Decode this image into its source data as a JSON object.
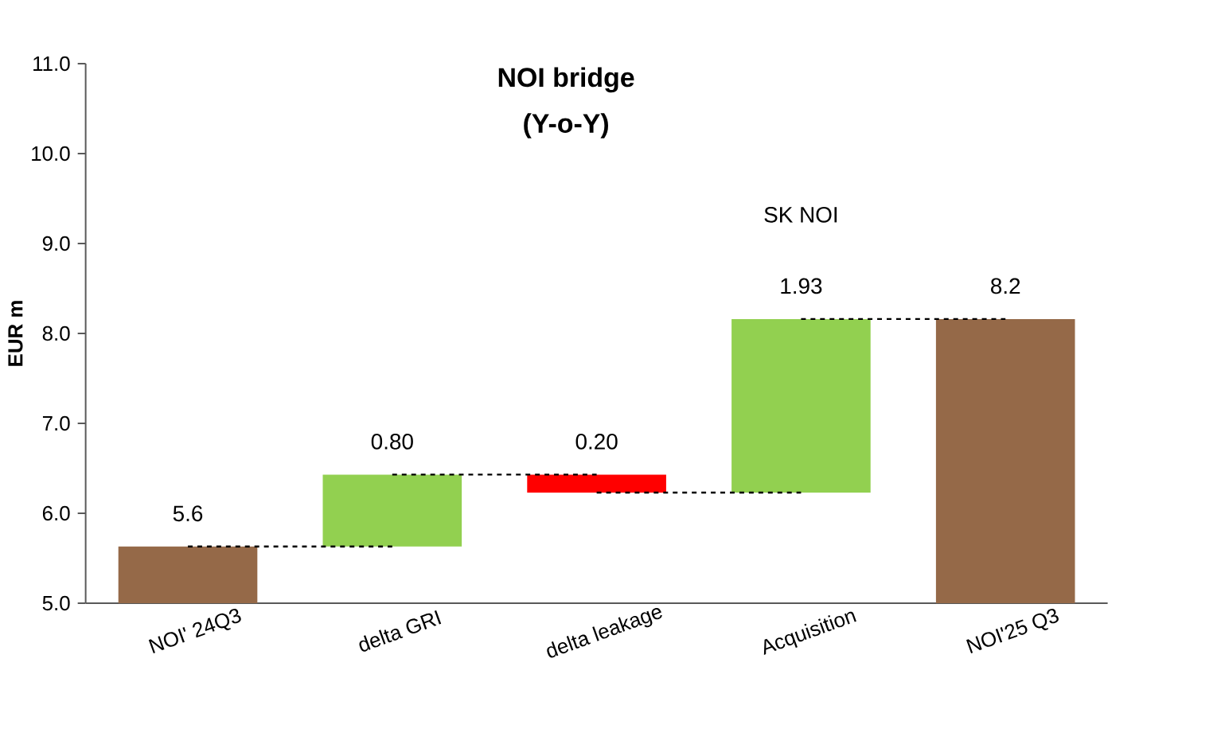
{
  "chart_data": {
    "type": "bar",
    "title": "NOI bridge",
    "subtitle": "(Y-o-Y)",
    "ylabel": "EUR m",
    "categories": [
      "NOI' 24Q3",
      "delta GRI",
      "delta leakage",
      "Acquisition",
      "NOI'25 Q3"
    ],
    "values": [
      5.63,
      0.8,
      -0.2,
      1.93,
      8.16
    ],
    "base": [
      null,
      5.63,
      6.43,
      6.23,
      null
    ],
    "colors": [
      "#956948",
      "#92d050",
      "#ff0000",
      "#92d050",
      "#956948"
    ],
    "value_labels": [
      "5.6",
      "0.80",
      "0.20",
      "1.93",
      "8.2"
    ],
    "annotations": [
      "SK NOI"
    ],
    "ylim": [
      5,
      11
    ],
    "yticks": [
      {
        "value": 5,
        "label": "5.0"
      },
      {
        "value": 6,
        "label": "6.0"
      },
      {
        "value": 7,
        "label": "7.0"
      },
      {
        "value": 8,
        "label": "8.0"
      },
      {
        "value": 9,
        "label": "9.0"
      },
      {
        "value": 10,
        "label": "10.0"
      },
      {
        "value": 11,
        "label": "11.0"
      }
    ]
  }
}
